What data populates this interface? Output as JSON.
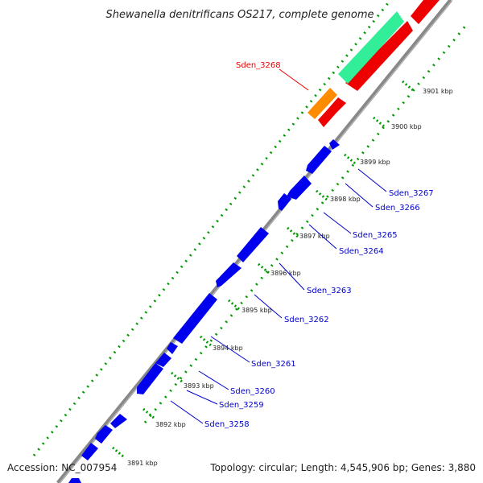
{
  "title": "Shewanella denitrificans OS217, complete genome",
  "footer": {
    "accession": "Accession: NC_007954",
    "topology": "Topology: circular; Length: 4,545,906 bp; Genes: 3,880"
  },
  "colors": {
    "backbone": "#8a8a8a",
    "cds_strand": "#0000ee",
    "highlight_gene": "#ee0000",
    "orange_feature": "#ff8c00",
    "teal_feature": "#33ee99",
    "gc_dots": "#009900",
    "gene_label": "#0000cc",
    "highlight_label": "#ee0000"
  },
  "tick_labels": [
    "3891 kbp",
    "3892 kbp",
    "3893 kbp",
    "3894 kbp",
    "3895 kbp",
    "3896 kbp",
    "3897 kbp",
    "3898 kbp",
    "3899 kbp",
    "3900 kbp",
    "3901 kbp"
  ],
  "gene_labels": [
    "Sden_3258",
    "Sden_3259",
    "Sden_3260",
    "Sden_3261",
    "Sden_3262",
    "Sden_3263",
    "Sden_3264",
    "Sden_3265",
    "Sden_3266",
    "Sden_3267"
  ],
  "highlight_label": "Sden_3268"
}
